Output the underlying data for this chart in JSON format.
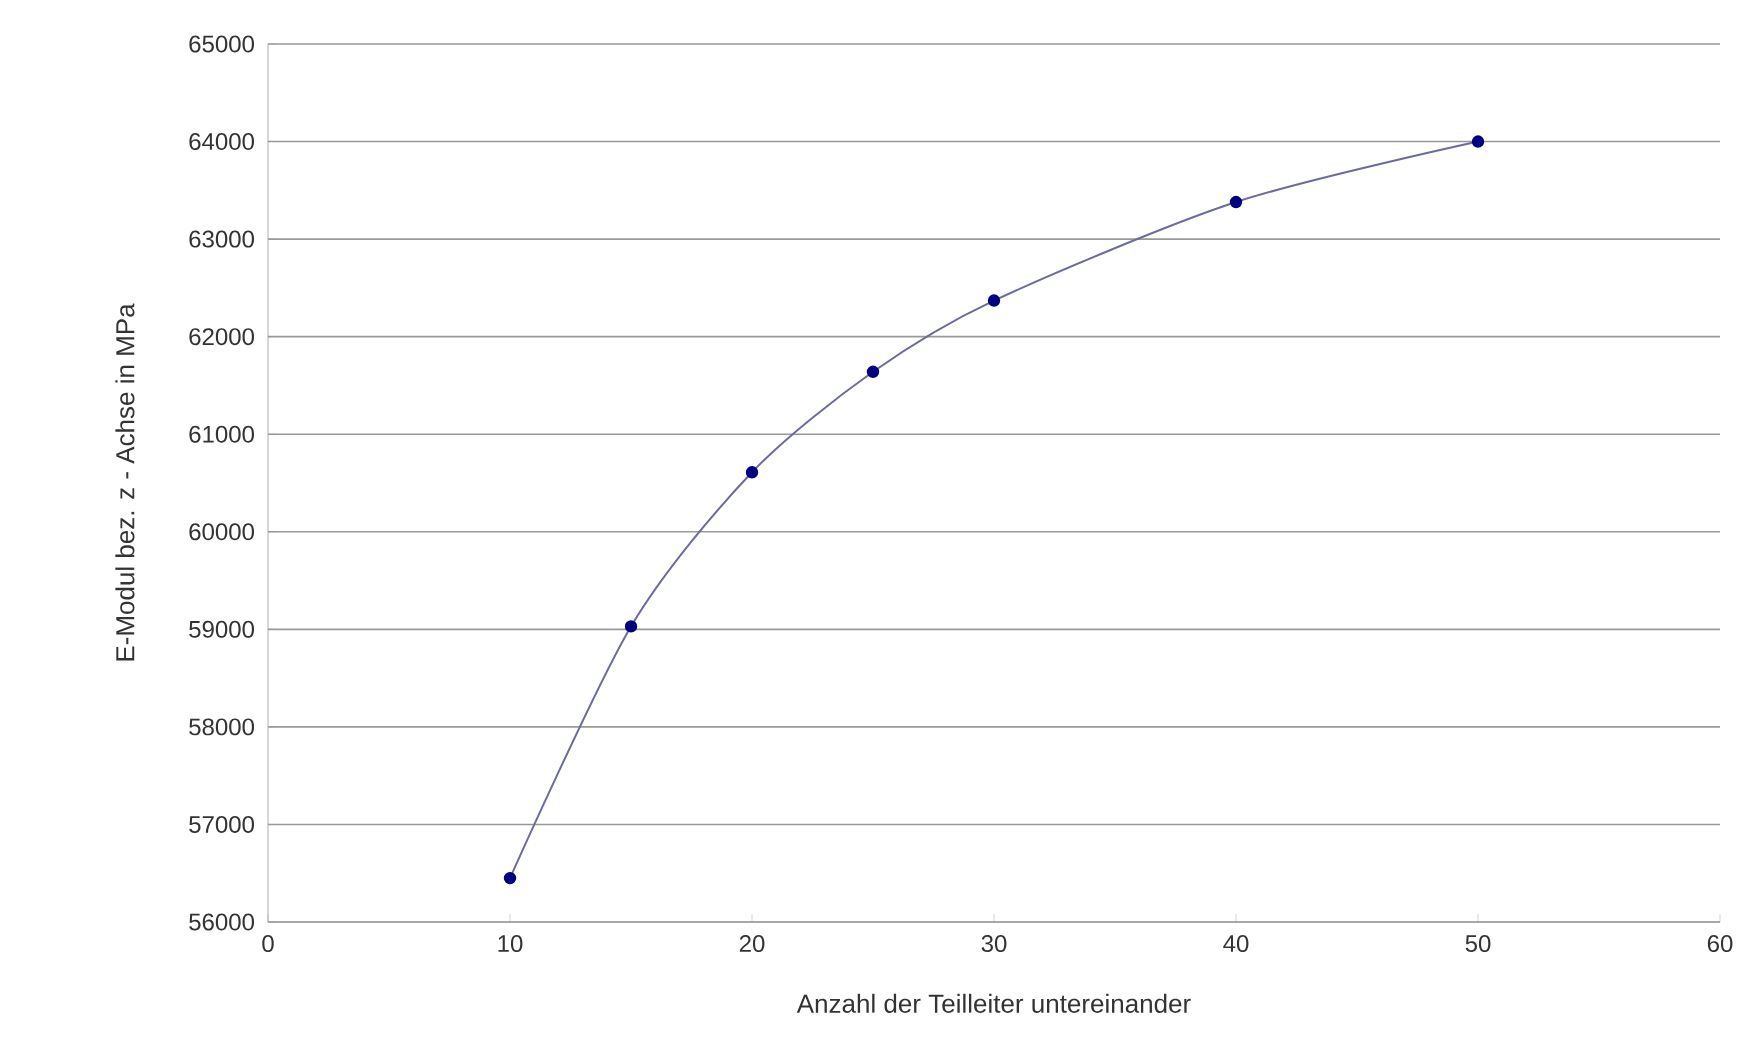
{
  "chart_data": {
    "type": "line",
    "xlabel": "Anzahl der Teilleiter untereinander",
    "ylabel": "E-Modul bez. z - Achse in MPa",
    "x": [
      10,
      15,
      20,
      25,
      30,
      40,
      50
    ],
    "series": [
      {
        "color": "#000080",
        "values": [
          56450,
          59030,
          60610,
          61640,
          62370,
          63380,
          64000
        ]
      }
    ],
    "xlim": [
      0,
      60
    ],
    "xticks": [
      0,
      10,
      20,
      30,
      40,
      50,
      60
    ],
    "ylim": [
      56000,
      65000
    ],
    "yticks": [
      56000,
      57000,
      58000,
      59000,
      60000,
      61000,
      62000,
      63000,
      64000,
      65000
    ],
    "grid": "y",
    "marker": "circle",
    "line_style": "solid"
  }
}
